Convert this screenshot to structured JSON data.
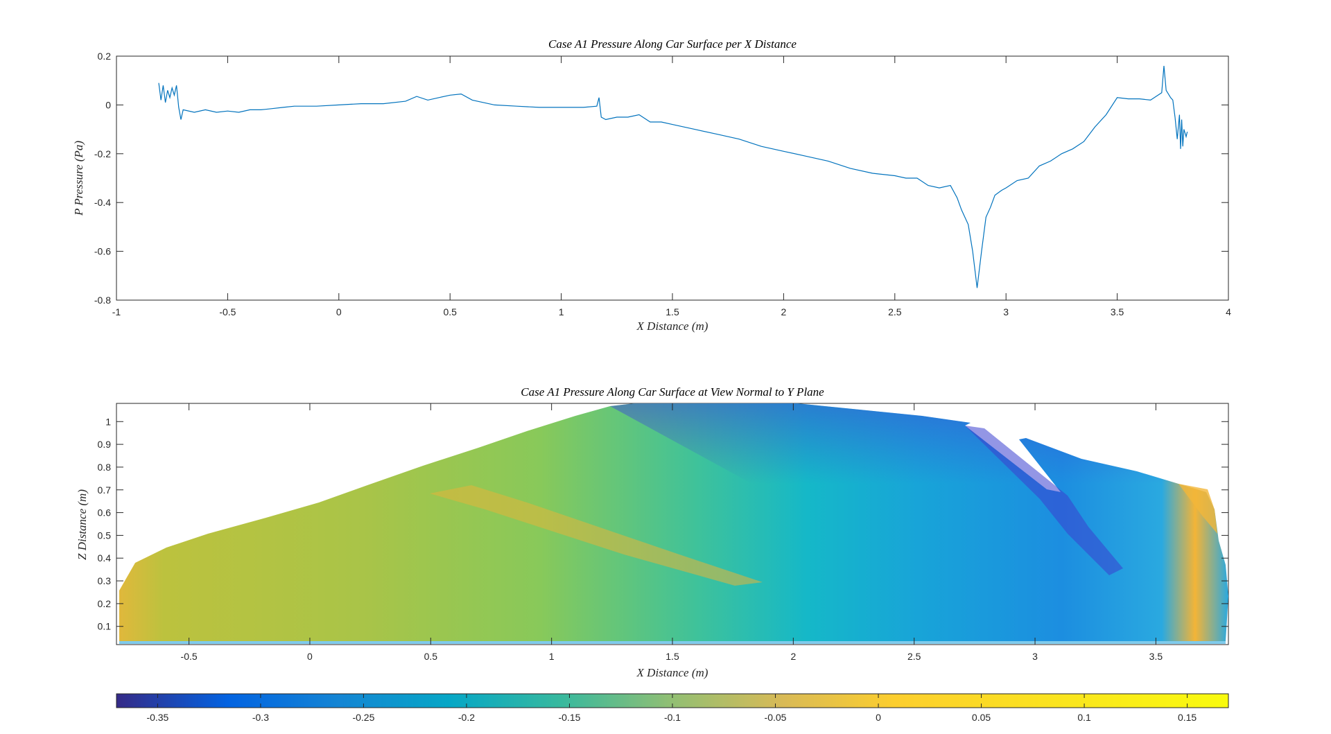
{
  "chart_data": [
    {
      "type": "line",
      "title": "Case A1 Pressure Along Car Surface per X Distance",
      "xlabel": "X Distance (m)",
      "ylabel": "P Pressure (Pa)",
      "xlim": [
        -1,
        4
      ],
      "ylim": [
        -0.8,
        0.2
      ],
      "xticks": [
        "-1",
        "-0.5",
        "0",
        "0.5",
        "1",
        "1.5",
        "2",
        "2.5",
        "3",
        "3.5",
        "4"
      ],
      "yticks": [
        "0.2",
        "0",
        "-0.2",
        "-0.4",
        "-0.6",
        "-0.8"
      ],
      "grid": false,
      "series": [
        {
          "color": "#0072BD",
          "points": [
            [
              -0.81,
              0.09
            ],
            [
              -0.8,
              0.02
            ],
            [
              -0.79,
              0.08
            ],
            [
              -0.78,
              0.01
            ],
            [
              -0.77,
              0.06
            ],
            [
              -0.76,
              0.03
            ],
            [
              -0.75,
              0.07
            ],
            [
              -0.74,
              0.04
            ],
            [
              -0.73,
              0.08
            ],
            [
              -0.72,
              -0.01
            ],
            [
              -0.71,
              -0.06
            ],
            [
              -0.7,
              -0.02
            ],
            [
              -0.65,
              -0.03
            ],
            [
              -0.6,
              -0.02
            ],
            [
              -0.55,
              -0.03
            ],
            [
              -0.5,
              -0.025
            ],
            [
              -0.45,
              -0.03
            ],
            [
              -0.4,
              -0.02
            ],
            [
              -0.35,
              -0.02
            ],
            [
              -0.3,
              -0.015
            ],
            [
              -0.25,
              -0.01
            ],
            [
              -0.2,
              -0.005
            ],
            [
              -0.1,
              -0.005
            ],
            [
              0.0,
              0.0
            ],
            [
              0.1,
              0.005
            ],
            [
              0.2,
              0.005
            ],
            [
              0.3,
              0.015
            ],
            [
              0.35,
              0.035
            ],
            [
              0.4,
              0.02
            ],
            [
              0.45,
              0.03
            ],
            [
              0.5,
              0.04
            ],
            [
              0.55,
              0.045
            ],
            [
              0.6,
              0.02
            ],
            [
              0.7,
              0.0
            ],
            [
              0.8,
              -0.005
            ],
            [
              0.9,
              -0.01
            ],
            [
              1.0,
              -0.01
            ],
            [
              1.1,
              -0.01
            ],
            [
              1.16,
              -0.005
            ],
            [
              1.17,
              0.03
            ],
            [
              1.18,
              -0.05
            ],
            [
              1.2,
              -0.06
            ],
            [
              1.25,
              -0.05
            ],
            [
              1.3,
              -0.05
            ],
            [
              1.35,
              -0.04
            ],
            [
              1.4,
              -0.07
            ],
            [
              1.45,
              -0.07
            ],
            [
              1.5,
              -0.08
            ],
            [
              1.6,
              -0.1
            ],
            [
              1.7,
              -0.12
            ],
            [
              1.8,
              -0.14
            ],
            [
              1.9,
              -0.17
            ],
            [
              2.0,
              -0.19
            ],
            [
              2.1,
              -0.21
            ],
            [
              2.2,
              -0.23
            ],
            [
              2.3,
              -0.26
            ],
            [
              2.4,
              -0.28
            ],
            [
              2.5,
              -0.29
            ],
            [
              2.55,
              -0.3
            ],
            [
              2.6,
              -0.3
            ],
            [
              2.65,
              -0.33
            ],
            [
              2.7,
              -0.34
            ],
            [
              2.75,
              -0.33
            ],
            [
              2.78,
              -0.38
            ],
            [
              2.8,
              -0.43
            ],
            [
              2.83,
              -0.49
            ],
            [
              2.85,
              -0.6
            ],
            [
              2.87,
              -0.75
            ],
            [
              2.89,
              -0.6
            ],
            [
              2.91,
              -0.46
            ],
            [
              2.93,
              -0.42
            ],
            [
              2.95,
              -0.37
            ],
            [
              2.98,
              -0.35
            ],
            [
              3.0,
              -0.34
            ],
            [
              3.05,
              -0.31
            ],
            [
              3.1,
              -0.3
            ],
            [
              3.15,
              -0.25
            ],
            [
              3.2,
              -0.23
            ],
            [
              3.25,
              -0.2
            ],
            [
              3.3,
              -0.18
            ],
            [
              3.35,
              -0.15
            ],
            [
              3.4,
              -0.09
            ],
            [
              3.45,
              -0.04
            ],
            [
              3.5,
              0.03
            ],
            [
              3.55,
              0.025
            ],
            [
              3.6,
              0.025
            ],
            [
              3.65,
              0.02
            ],
            [
              3.7,
              0.05
            ],
            [
              3.71,
              0.16
            ],
            [
              3.72,
              0.06
            ],
            [
              3.74,
              0.03
            ],
            [
              3.75,
              0.02
            ],
            [
              3.76,
              -0.05
            ],
            [
              3.77,
              -0.14
            ],
            [
              3.78,
              -0.04
            ],
            [
              3.785,
              -0.18
            ],
            [
              3.79,
              -0.06
            ],
            [
              3.795,
              -0.17
            ],
            [
              3.8,
              -0.1
            ],
            [
              3.81,
              -0.13
            ],
            [
              3.815,
              -0.11
            ]
          ]
        }
      ]
    },
    {
      "type": "heatmap",
      "title": "Case A1 Pressure Along Car Surface at View Normal to Y Plane",
      "xlabel": "X Distance (m)",
      "ylabel": "Z Distance (m)",
      "xlim": [
        -0.8,
        3.8
      ],
      "ylim": [
        0.02,
        1.08
      ],
      "xticks": [
        "-0.5",
        "0",
        "0.5",
        "1",
        "1.5",
        "2",
        "2.5",
        "3",
        "3.5"
      ],
      "yticks": [
        "1",
        "0.9",
        "0.8",
        "0.7",
        "0.6",
        "0.5",
        "0.4",
        "0.3",
        "0.2",
        "0.1"
      ],
      "colormap": "parula",
      "clim": [
        -0.37,
        0.17
      ],
      "colorbar": {
        "location": "bottom",
        "ticks": [
          "-0.35",
          "-0.3",
          "-0.25",
          "-0.2",
          "-0.15",
          "-0.1",
          "-0.05",
          "0",
          "0.05",
          "0.1",
          "0.15"
        ]
      }
    }
  ]
}
